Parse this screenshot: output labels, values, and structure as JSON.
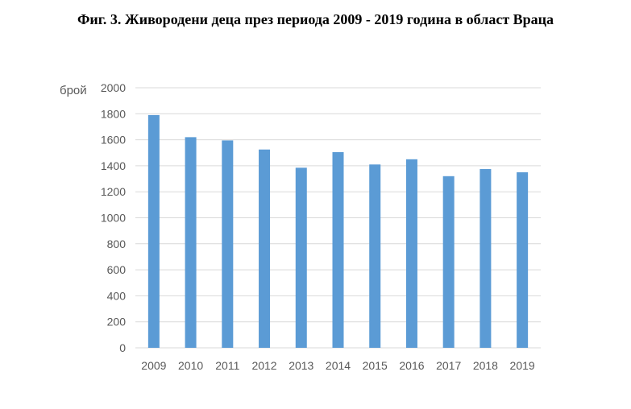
{
  "title": "Фиг. 3. Живородени деца през периода 2009 - 2019 година в област Враца",
  "chart_data": {
    "type": "bar",
    "title": "Фиг. 3. Живородени деца през периода 2009 - 2019 година в област Враца",
    "xlabel": "",
    "ylabel": "брой",
    "categories": [
      "2009",
      "2010",
      "2011",
      "2012",
      "2013",
      "2014",
      "2015",
      "2016",
      "2017",
      "2018",
      "2019"
    ],
    "values": [
      1790,
      1620,
      1595,
      1525,
      1385,
      1505,
      1410,
      1450,
      1320,
      1375,
      1350
    ],
    "ylim": [
      0,
      2000
    ],
    "yticks": [
      0,
      200,
      400,
      600,
      800,
      1000,
      1200,
      1400,
      1600,
      1800,
      2000
    ],
    "grid": true,
    "legend": "none",
    "colors": {
      "bar": "#5b9bd5",
      "grid": "#d9d9d9",
      "tick_text": "#595959"
    }
  }
}
